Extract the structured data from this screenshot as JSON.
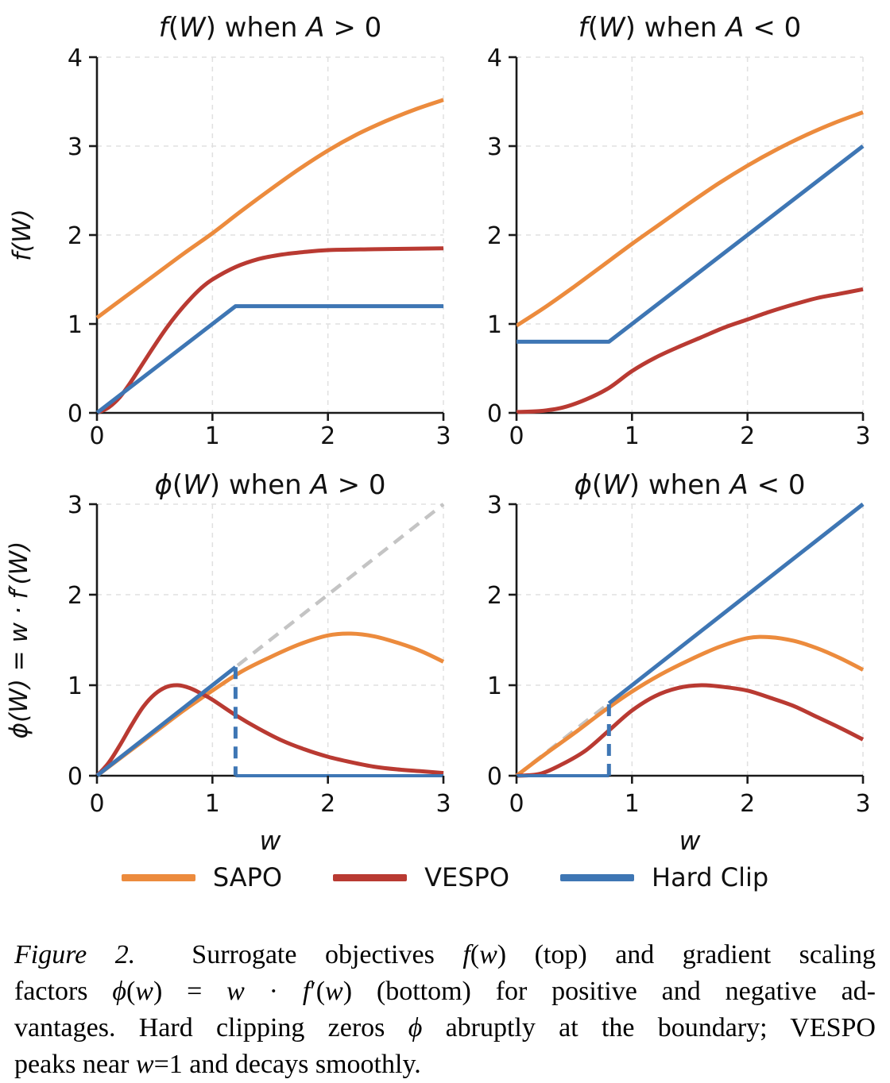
{
  "legend": {
    "items": [
      {
        "label": "SAPO",
        "color": "#EC8B3D"
      },
      {
        "label": "VESPO",
        "color": "#B93A32"
      },
      {
        "label": "Hard Clip",
        "color": "#3E76B4"
      }
    ]
  },
  "caption": {
    "lines": [
      [
        {
          "t": "Figure 2.",
          "i": true
        },
        {
          "t": "  Surrogate objectives ",
          "i": false
        },
        {
          "t": "f",
          "i": true
        },
        {
          "t": "(",
          "i": false
        },
        {
          "t": "w",
          "i": true
        },
        {
          "t": ") (top) and gradient scaling",
          "i": false
        }
      ],
      [
        {
          "t": "factors ",
          "i": false
        },
        {
          "t": "ϕ",
          "i": true
        },
        {
          "t": "(",
          "i": false
        },
        {
          "t": "w",
          "i": true
        },
        {
          "t": ") = ",
          "i": false
        },
        {
          "t": "w",
          "i": true
        },
        {
          "t": " · ",
          "i": false
        },
        {
          "t": "f",
          "i": true
        },
        {
          "t": "′(",
          "i": false
        },
        {
          "t": "w",
          "i": true
        },
        {
          "t": ") (bottom) for positive and negative ad-",
          "i": false
        }
      ],
      [
        {
          "t": "vantages. Hard clipping zeros ",
          "i": false
        },
        {
          "t": "ϕ",
          "i": true
        },
        {
          "t": " abruptly at the boundary; VESPO",
          "i": false
        }
      ],
      [
        {
          "t": "peaks near ",
          "i": false
        },
        {
          "t": "w",
          "i": true
        },
        {
          "t": "=1 and decays smoothly.",
          "i": false
        }
      ]
    ]
  },
  "chart_data": [
    {
      "type": "line",
      "name": "plot-f-a-positive",
      "title": "f(W) when A > 0",
      "title_segments": [
        {
          "t": "f",
          "i": true
        },
        {
          "t": "(",
          "i": false
        },
        {
          "t": "W",
          "i": true
        },
        {
          "t": ") when ",
          "i": false
        },
        {
          "t": "A",
          "i": true
        },
        {
          "t": " > 0",
          "i": false
        }
      ],
      "xlabel": "",
      "ylabel": "f(W)",
      "ylabel_segments": [
        {
          "t": "f",
          "i": true
        },
        {
          "t": "(",
          "i": false
        },
        {
          "t": "W",
          "i": true
        },
        {
          "t": ")",
          "i": false
        }
      ],
      "xlim": [
        0,
        3
      ],
      "ylim": [
        0,
        4
      ],
      "xticks": [
        0,
        1,
        2,
        3
      ],
      "yticks": [
        0,
        1,
        2,
        3,
        4
      ],
      "grid": true,
      "legend_position": "figure-bottom",
      "series": [
        {
          "name": "SAPO",
          "color": "#EC8B3D",
          "dash": "solid",
          "smooth": true,
          "width": 5,
          "points": [
            [
              0,
              1.07
            ],
            [
              0.25,
              1.31
            ],
            [
              0.5,
              1.55
            ],
            [
              0.75,
              1.79
            ],
            [
              1,
              2.02
            ],
            [
              1.25,
              2.27
            ],
            [
              1.5,
              2.51
            ],
            [
              1.75,
              2.74
            ],
            [
              2,
              2.95
            ],
            [
              2.25,
              3.13
            ],
            [
              2.5,
              3.28
            ],
            [
              2.75,
              3.41
            ],
            [
              3,
              3.52
            ]
          ]
        },
        {
          "name": "VESPO",
          "color": "#B93A32",
          "dash": "solid",
          "smooth": true,
          "width": 5,
          "points": [
            [
              0,
              0
            ],
            [
              0.1,
              0.06
            ],
            [
              0.2,
              0.18
            ],
            [
              0.3,
              0.36
            ],
            [
              0.4,
              0.56
            ],
            [
              0.5,
              0.76
            ],
            [
              0.6,
              0.95
            ],
            [
              0.7,
              1.12
            ],
            [
              0.8,
              1.27
            ],
            [
              0.9,
              1.4
            ],
            [
              1,
              1.5
            ],
            [
              1.2,
              1.64
            ],
            [
              1.4,
              1.73
            ],
            [
              1.6,
              1.78
            ],
            [
              1.8,
              1.81
            ],
            [
              2,
              1.83
            ],
            [
              2.4,
              1.84
            ],
            [
              3,
              1.85
            ]
          ]
        },
        {
          "name": "Hard Clip",
          "color": "#3E76B4",
          "dash": "solid",
          "smooth": false,
          "width": 5,
          "points": [
            [
              0,
              0
            ],
            [
              1.2,
              1.2
            ],
            [
              3,
              1.2
            ]
          ]
        }
      ]
    },
    {
      "type": "line",
      "name": "plot-f-a-negative",
      "title": "f(W) when A < 0",
      "title_segments": [
        {
          "t": "f",
          "i": true
        },
        {
          "t": "(",
          "i": false
        },
        {
          "t": "W",
          "i": true
        },
        {
          "t": ") when ",
          "i": false
        },
        {
          "t": "A",
          "i": true
        },
        {
          "t": " < 0",
          "i": false
        }
      ],
      "xlabel": "",
      "ylabel": "",
      "ylabel_segments": [],
      "xlim": [
        0,
        3
      ],
      "ylim": [
        0,
        4
      ],
      "xticks": [
        0,
        1,
        2,
        3
      ],
      "yticks": [
        0,
        1,
        2,
        3,
        4
      ],
      "grid": true,
      "legend_position": "figure-bottom",
      "series": [
        {
          "name": "SAPO",
          "color": "#EC8B3D",
          "dash": "solid",
          "smooth": true,
          "width": 5,
          "points": [
            [
              0,
              0.98
            ],
            [
              0.25,
              1.19
            ],
            [
              0.5,
              1.42
            ],
            [
              0.75,
              1.66
            ],
            [
              1,
              1.9
            ],
            [
              1.25,
              2.13
            ],
            [
              1.5,
              2.36
            ],
            [
              1.75,
              2.58
            ],
            [
              2,
              2.78
            ],
            [
              2.25,
              2.96
            ],
            [
              2.5,
              3.12
            ],
            [
              2.75,
              3.26
            ],
            [
              3,
              3.38
            ]
          ]
        },
        {
          "name": "VESPO",
          "color": "#B93A32",
          "dash": "solid",
          "smooth": true,
          "width": 5,
          "points": [
            [
              0,
              0.01
            ],
            [
              0.2,
              0.02
            ],
            [
              0.4,
              0.06
            ],
            [
              0.6,
              0.15
            ],
            [
              0.8,
              0.28
            ],
            [
              1,
              0.47
            ],
            [
              1.2,
              0.62
            ],
            [
              1.4,
              0.74
            ],
            [
              1.6,
              0.85
            ],
            [
              1.8,
              0.96
            ],
            [
              2,
              1.05
            ],
            [
              2.2,
              1.14
            ],
            [
              2.4,
              1.22
            ],
            [
              2.6,
              1.29
            ],
            [
              2.8,
              1.34
            ],
            [
              3,
              1.39
            ]
          ]
        },
        {
          "name": "Hard Clip",
          "color": "#3E76B4",
          "dash": "solid",
          "smooth": false,
          "width": 5,
          "points": [
            [
              0,
              0.8
            ],
            [
              0.8,
              0.8
            ],
            [
              3,
              3
            ]
          ]
        }
      ]
    },
    {
      "type": "line",
      "name": "plot-phi-a-positive",
      "title": "ϕ(W) when A > 0",
      "title_segments": [
        {
          "t": "ϕ",
          "i": true
        },
        {
          "t": "(",
          "i": false
        },
        {
          "t": "W",
          "i": true
        },
        {
          "t": ") when ",
          "i": false
        },
        {
          "t": "A",
          "i": true
        },
        {
          "t": " > 0",
          "i": false
        }
      ],
      "xlabel": "w",
      "ylabel": "ϕ(W) = w · f′(W)",
      "ylabel_segments": [
        {
          "t": "ϕ",
          "i": true
        },
        {
          "t": "(",
          "i": false
        },
        {
          "t": "W",
          "i": true
        },
        {
          "t": ") = ",
          "i": false
        },
        {
          "t": "w",
          "i": true
        },
        {
          "t": " · ",
          "i": false
        },
        {
          "t": "f",
          "i": true
        },
        {
          "t": "′(",
          "i": false
        },
        {
          "t": "W",
          "i": true
        },
        {
          "t": ")",
          "i": false
        }
      ],
      "xlim": [
        0,
        3
      ],
      "ylim": [
        0,
        3
      ],
      "xticks": [
        0,
        1,
        2,
        3
      ],
      "yticks": [
        0,
        1,
        2,
        3
      ],
      "grid": true,
      "legend_position": "figure-bottom",
      "clip_boundary": 1.2,
      "series": [
        {
          "name": "identity w",
          "color": "#C4C4C4",
          "dash": "dashed",
          "smooth": false,
          "width": 4.5,
          "points": [
            [
              0,
              0
            ],
            [
              3,
              3
            ]
          ]
        },
        {
          "name": "SAPO",
          "color": "#EC8B3D",
          "dash": "solid",
          "smooth": true,
          "width": 5,
          "points": [
            [
              0,
              0
            ],
            [
              0.25,
              0.24
            ],
            [
              0.5,
              0.48
            ],
            [
              0.75,
              0.72
            ],
            [
              1,
              0.94
            ],
            [
              1.25,
              1.15
            ],
            [
              1.5,
              1.31
            ],
            [
              1.75,
              1.45
            ],
            [
              2,
              1.55
            ],
            [
              2.2,
              1.57
            ],
            [
              2.4,
              1.54
            ],
            [
              2.6,
              1.47
            ],
            [
              2.8,
              1.38
            ],
            [
              3,
              1.26
            ]
          ]
        },
        {
          "name": "VESPO",
          "color": "#B93A32",
          "dash": "solid",
          "smooth": true,
          "width": 5,
          "points": [
            [
              0,
              0
            ],
            [
              0.1,
              0.14
            ],
            [
              0.2,
              0.34
            ],
            [
              0.3,
              0.56
            ],
            [
              0.4,
              0.76
            ],
            [
              0.5,
              0.9
            ],
            [
              0.6,
              0.98
            ],
            [
              0.7,
              1.0
            ],
            [
              0.8,
              0.97
            ],
            [
              0.9,
              0.91
            ],
            [
              1,
              0.84
            ],
            [
              1.2,
              0.67
            ],
            [
              1.4,
              0.52
            ],
            [
              1.6,
              0.39
            ],
            [
              1.8,
              0.29
            ],
            [
              2,
              0.21
            ],
            [
              2.2,
              0.15
            ],
            [
              2.4,
              0.1
            ],
            [
              2.6,
              0.07
            ],
            [
              2.8,
              0.05
            ],
            [
              3,
              0.03
            ]
          ]
        },
        {
          "name": "Hard Clip rise",
          "color": "#3E76B4",
          "dash": "solid",
          "smooth": false,
          "width": 5,
          "points": [
            [
              0,
              0
            ],
            [
              1.2,
              1.2
            ]
          ]
        },
        {
          "name": "Hard Clip boundary",
          "color": "#3E76B4",
          "dash": "dashed",
          "smooth": false,
          "width": 5,
          "points": [
            [
              1.2,
              1.2
            ],
            [
              1.2,
              0
            ]
          ]
        },
        {
          "name": "Hard Clip zero",
          "color": "#3E76B4",
          "dash": "solid",
          "smooth": false,
          "width": 4,
          "points": [
            [
              1.2,
              0
            ],
            [
              3,
              0
            ]
          ]
        }
      ]
    },
    {
      "type": "line",
      "name": "plot-phi-a-negative",
      "title": "ϕ(W) when A < 0",
      "title_segments": [
        {
          "t": "ϕ",
          "i": true
        },
        {
          "t": "(",
          "i": false
        },
        {
          "t": "W",
          "i": true
        },
        {
          "t": ") when ",
          "i": false
        },
        {
          "t": "A",
          "i": true
        },
        {
          "t": " < 0",
          "i": false
        }
      ],
      "xlabel": "w",
      "ylabel": "",
      "ylabel_segments": [],
      "xlim": [
        0,
        3
      ],
      "ylim": [
        0,
        3
      ],
      "xticks": [
        0,
        1,
        2,
        3
      ],
      "yticks": [
        0,
        1,
        2,
        3
      ],
      "grid": true,
      "legend_position": "figure-bottom",
      "clip_boundary": 0.8,
      "series": [
        {
          "name": "identity w",
          "color": "#C4C4C4",
          "dash": "dashed",
          "smooth": false,
          "width": 4.5,
          "points": [
            [
              0,
              0
            ],
            [
              3,
              3
            ]
          ]
        },
        {
          "name": "SAPO",
          "color": "#EC8B3D",
          "dash": "solid",
          "smooth": true,
          "width": 5,
          "points": [
            [
              0,
              0
            ],
            [
              0.25,
              0.24
            ],
            [
              0.5,
              0.47
            ],
            [
              0.75,
              0.71
            ],
            [
              1,
              0.93
            ],
            [
              1.25,
              1.12
            ],
            [
              1.5,
              1.28
            ],
            [
              1.75,
              1.42
            ],
            [
              2,
              1.52
            ],
            [
              2.2,
              1.53
            ],
            [
              2.4,
              1.49
            ],
            [
              2.6,
              1.41
            ],
            [
              2.8,
              1.3
            ],
            [
              3,
              1.17
            ]
          ]
        },
        {
          "name": "VESPO",
          "color": "#B93A32",
          "dash": "solid",
          "smooth": true,
          "width": 5,
          "points": [
            [
              0,
              0
            ],
            [
              0.2,
              0.02
            ],
            [
              0.4,
              0.13
            ],
            [
              0.6,
              0.28
            ],
            [
              0.8,
              0.5
            ],
            [
              1,
              0.72
            ],
            [
              1.2,
              0.88
            ],
            [
              1.4,
              0.97
            ],
            [
              1.6,
              1.0
            ],
            [
              1.8,
              0.98
            ],
            [
              2,
              0.94
            ],
            [
              2.2,
              0.86
            ],
            [
              2.4,
              0.77
            ],
            [
              2.6,
              0.65
            ],
            [
              2.8,
              0.53
            ],
            [
              3,
              0.4
            ]
          ]
        },
        {
          "name": "Hard Clip zero",
          "color": "#3E76B4",
          "dash": "solid",
          "smooth": false,
          "width": 4,
          "points": [
            [
              0,
              0
            ],
            [
              0.8,
              0
            ]
          ]
        },
        {
          "name": "Hard Clip boundary",
          "color": "#3E76B4",
          "dash": "dashed",
          "smooth": false,
          "width": 5,
          "points": [
            [
              0.8,
              0
            ],
            [
              0.8,
              0.8
            ]
          ]
        },
        {
          "name": "Hard Clip rise",
          "color": "#3E76B4",
          "dash": "solid",
          "smooth": false,
          "width": 5,
          "points": [
            [
              0.8,
              0.8
            ],
            [
              3,
              3
            ]
          ]
        }
      ]
    }
  ]
}
